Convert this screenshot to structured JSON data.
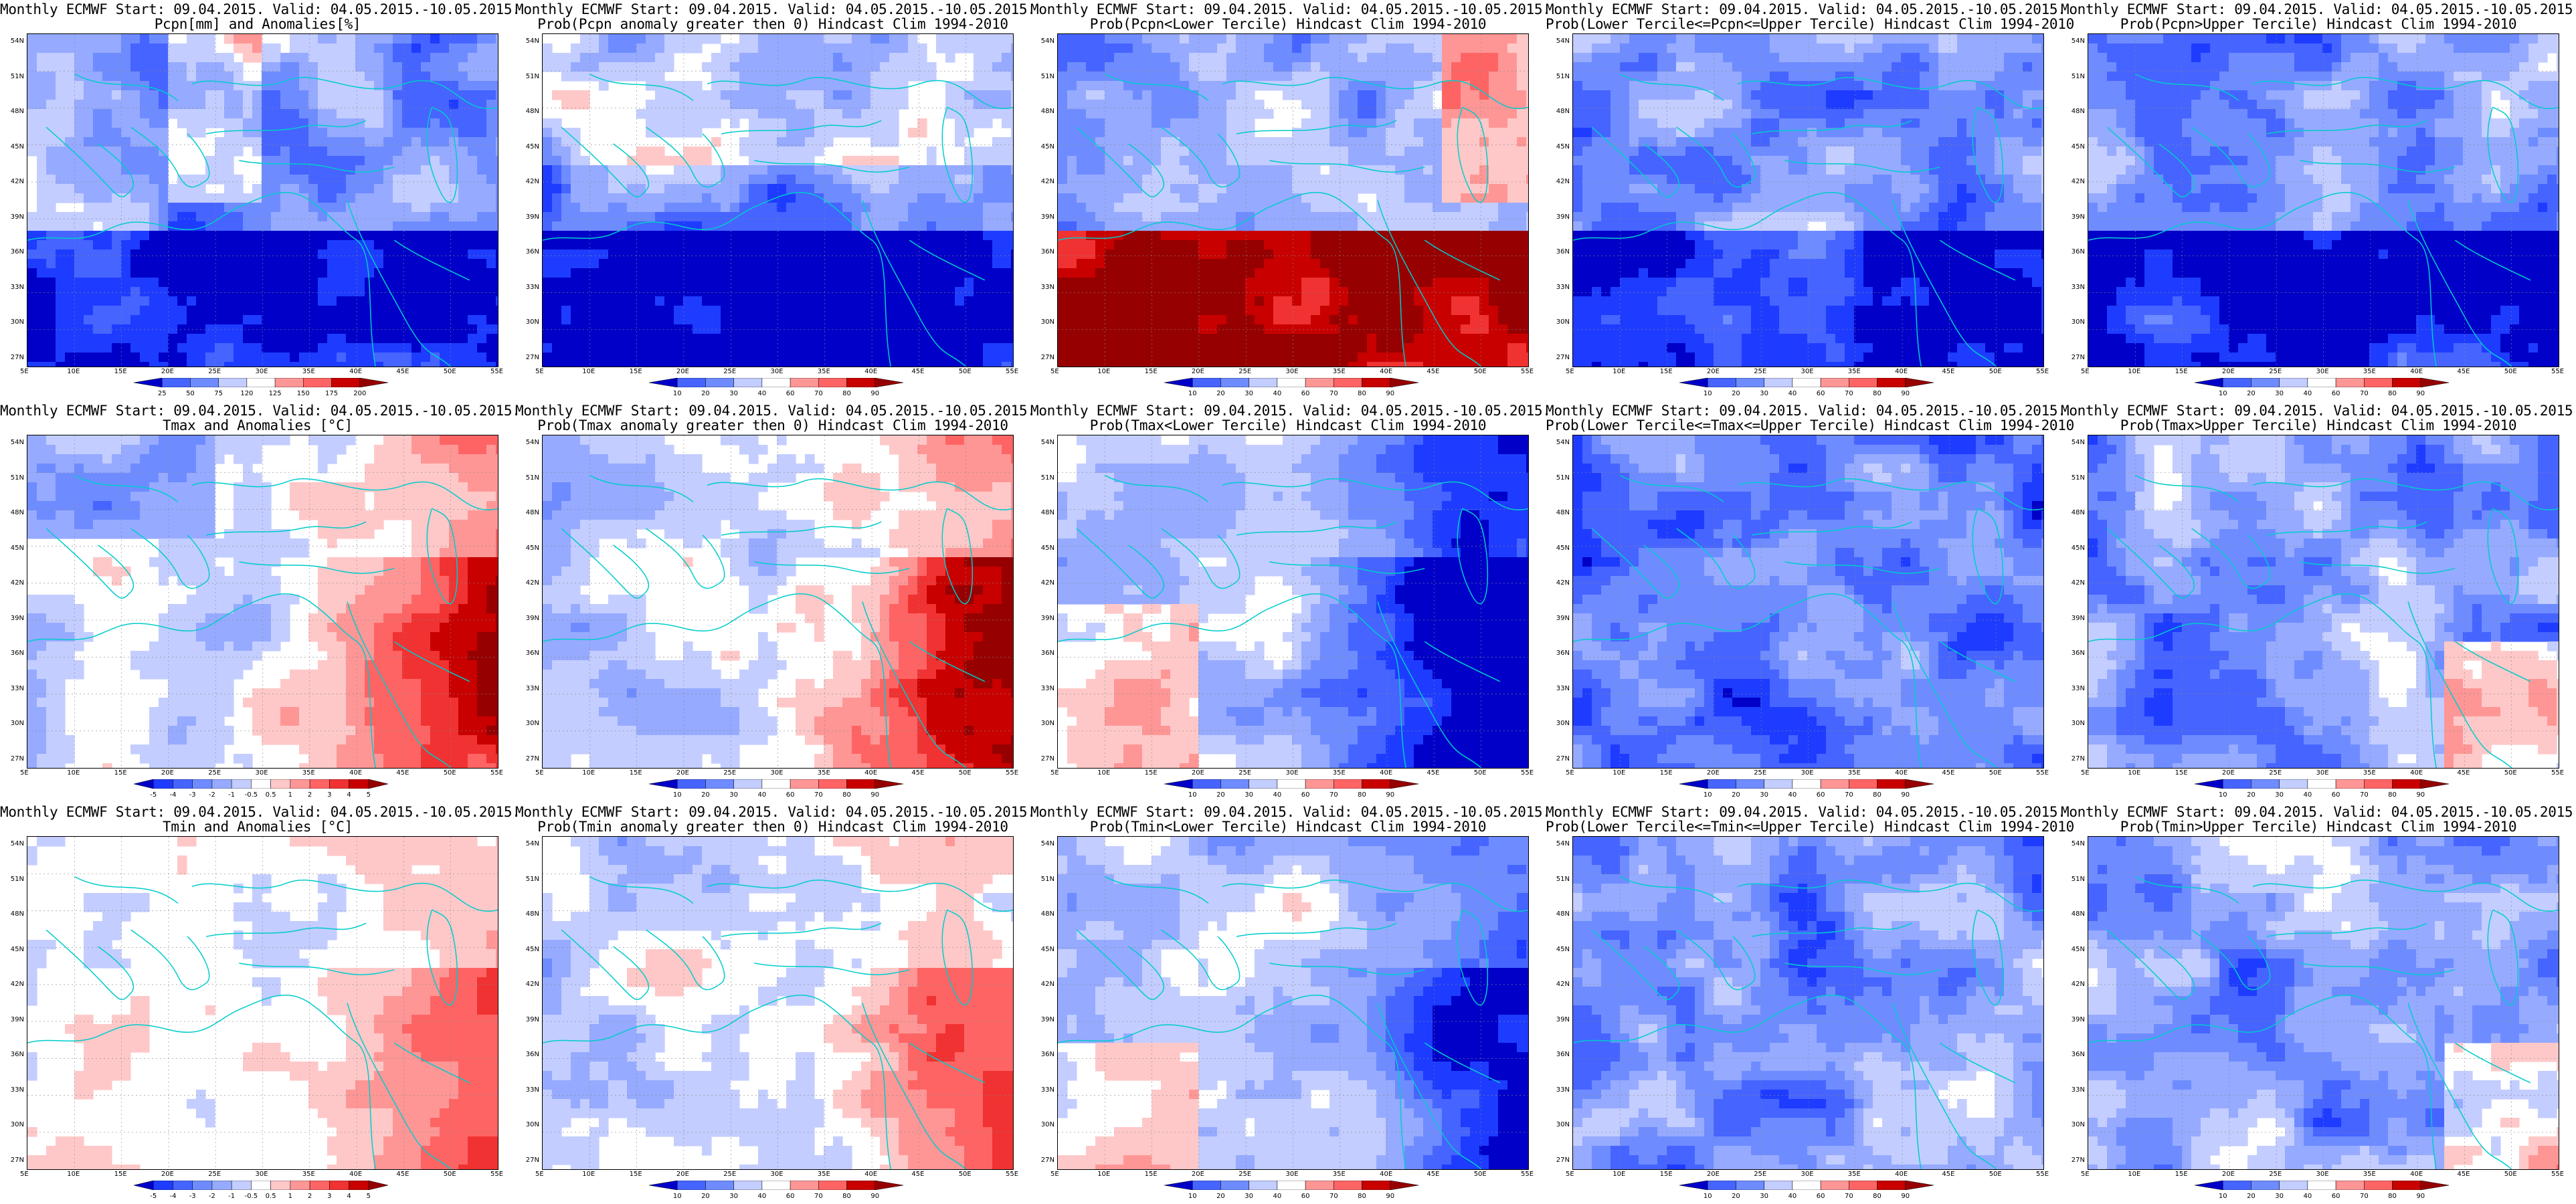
{
  "rows": [
    {
      "variable": "precip",
      "panels": [
        {
          "line1": "Monthly ECMWF Start: 09.04.2015. Valid: 04.05.2015.-10.05.2015.",
          "line2": "Pcpn[mm] and Anomalies[%]",
          "kind": "anom",
          "colorbar": [
            "25",
            "50",
            "75",
            "120",
            "125",
            "150",
            "175",
            "200"
          ]
        },
        {
          "line1": "Monthly ECMWF Start: 09.04.2015. Valid: 04.05.2015.-10.05.2015.",
          "line2": "Prob(Pcpn anomaly greater then 0) Hindcast Clim 1994-2010",
          "kind": "prob",
          "colorbar": [
            "10",
            "20",
            "30",
            "40",
            "60",
            "70",
            "80",
            "90"
          ]
        },
        {
          "line1": "Monthly ECMWF Start: 09.04.2015. Valid: 04.05.2015.-10.05.2015.",
          "line2": "Prob(Pcpn<Lower Tercile) Hindcast Clim 1994-2010",
          "kind": "prob",
          "colorbar": [
            "10",
            "20",
            "30",
            "40",
            "60",
            "70",
            "80",
            "90"
          ]
        },
        {
          "line1": "Monthly ECMWF Start: 09.04.2015. Valid: 04.05.2015.-10.05.2015.",
          "line2": "Prob(Lower Tercile<=Pcpn<=Upper Tercile) Hindcast Clim 1994-2010",
          "kind": "prob",
          "colorbar": [
            "10",
            "20",
            "30",
            "40",
            "60",
            "70",
            "80",
            "90"
          ]
        },
        {
          "line1": "Monthly ECMWF Start: 09.04.2015. Valid: 04.05.2015.-10.05.2015.",
          "line2": "Prob(Pcpn>Upper Tercile) Hindcast Clim 1994-2010",
          "kind": "prob",
          "colorbar": [
            "10",
            "20",
            "30",
            "40",
            "60",
            "70",
            "80",
            "90"
          ]
        }
      ]
    },
    {
      "variable": "tmax",
      "panels": [
        {
          "line1": "Monthly ECMWF Start: 09.04.2015. Valid: 04.05.2015.-10.05.2015.",
          "line2": "Tmax and Anomalies [°C]",
          "kind": "anom",
          "colorbar": [
            "-5",
            "-4",
            "-3",
            "-2",
            "-1",
            "-0.5",
            "0.5",
            "1",
            "2",
            "3",
            "4",
            "5"
          ]
        },
        {
          "line1": "Monthly ECMWF Start: 09.04.2015. Valid: 04.05.2015.-10.05.2015.",
          "line2": "Prob(Tmax anomaly greater then 0) Hindcast Clim 1994-2010",
          "kind": "prob",
          "colorbar": [
            "10",
            "20",
            "30",
            "40",
            "60",
            "70",
            "80",
            "90"
          ]
        },
        {
          "line1": "Monthly ECMWF Start: 09.04.2015. Valid: 04.05.2015.-10.05.2015.",
          "line2": "Prob(Tmax<Lower Tercile) Hindcast Clim 1994-2010",
          "kind": "prob",
          "colorbar": [
            "10",
            "20",
            "30",
            "40",
            "60",
            "70",
            "80",
            "90"
          ]
        },
        {
          "line1": "Monthly ECMWF Start: 09.04.2015. Valid: 04.05.2015.-10.05.2015.",
          "line2": "Prob(Lower Tercile<=Tmax<=Upper Tercile) Hindcast Clim 1994-2010",
          "kind": "prob",
          "colorbar": [
            "10",
            "20",
            "30",
            "40",
            "60",
            "70",
            "80",
            "90"
          ]
        },
        {
          "line1": "Monthly ECMWF Start: 09.04.2015. Valid: 04.05.2015.-10.05.2015.",
          "line2": "Prob(Tmax>Upper Tercile) Hindcast Clim 1994-2010",
          "kind": "prob",
          "colorbar": [
            "10",
            "20",
            "30",
            "40",
            "60",
            "70",
            "80",
            "90"
          ]
        }
      ]
    },
    {
      "variable": "tmin",
      "panels": [
        {
          "line1": "Monthly ECMWF Start: 09.04.2015. Valid: 04.05.2015.-10.05.2015.",
          "line2": "Tmin and Anomalies [°C]",
          "kind": "anom",
          "colorbar": [
            "-5",
            "-4",
            "-3",
            "-2",
            "-1",
            "-0.5",
            "0.5",
            "1",
            "2",
            "3",
            "4",
            "5"
          ]
        },
        {
          "line1": "Monthly ECMWF Start: 09.04.2015. Valid: 04.05.2015.-10.05.2015.",
          "line2": "Prob(Tmin anomaly greater then 0) Hindcast Clim 1994-2010",
          "kind": "prob",
          "colorbar": [
            "10",
            "20",
            "30",
            "40",
            "60",
            "70",
            "80",
            "90"
          ]
        },
        {
          "line1": "Monthly ECMWF Start: 09.04.2015. Valid: 04.05.2015.-10.05.2015.",
          "line2": "Prob(Tmin<Lower Tercile) Hindcast Clim 1994-2010",
          "kind": "prob",
          "colorbar": [
            "10",
            "20",
            "30",
            "40",
            "60",
            "70",
            "80",
            "90"
          ]
        },
        {
          "line1": "Monthly ECMWF Start: 09.04.2015. Valid: 04.05.2015.-10.05.2015.",
          "line2": "Prob(Lower Tercile<=Tmin<=Upper Tercile) Hindcast Clim 1994-2010",
          "kind": "prob",
          "colorbar": [
            "10",
            "20",
            "30",
            "40",
            "60",
            "70",
            "80",
            "90"
          ]
        },
        {
          "line1": "Monthly ECMWF Start: 09.04.2015. Valid: 04.05.2015.-10.05.2015.",
          "line2": "Prob(Tmin>Upper Tercile) Hindcast Clim 1994-2010",
          "kind": "prob",
          "colorbar": [
            "10",
            "20",
            "30",
            "40",
            "60",
            "70",
            "80",
            "90"
          ]
        }
      ]
    }
  ],
  "lat_labels": [
    "54N",
    "51N",
    "48N",
    "45N",
    "42N",
    "39N",
    "36N",
    "33N",
    "30N",
    "27N"
  ],
  "lon_labels": [
    "5E",
    "10E",
    "15E",
    "20E",
    "25E",
    "30E",
    "35E",
    "40E",
    "45E",
    "50E",
    "55E"
  ],
  "colors": {
    "blues": [
      "#0000c8",
      "#1e3cff",
      "#4664ff",
      "#6e8cff",
      "#96aaff",
      "#c3cdff"
    ],
    "white": "#ffffff",
    "reds": [
      "#ffc8c8",
      "#ff9696",
      "#ff6464",
      "#f03232",
      "#c80000",
      "#960000"
    ],
    "coast": "#00cccc",
    "contour": "#000000"
  }
}
